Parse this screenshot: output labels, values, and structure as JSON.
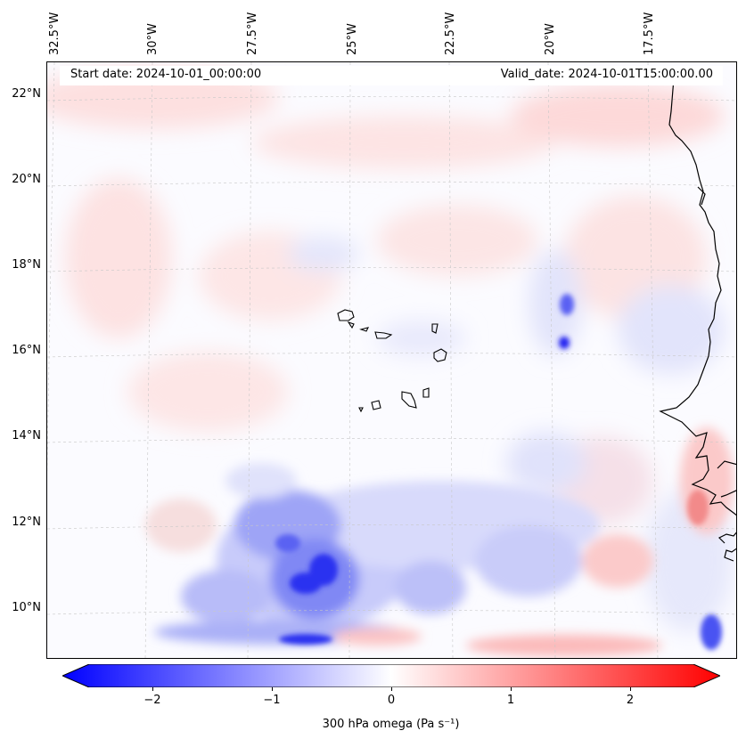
{
  "header": {
    "start_date": "Start date: 2024-10-01_00:00:00",
    "valid_date": "Valid_date: 2024-10-01T15:00:00.00"
  },
  "longitude_labels": [
    "32.5°W",
    "30°W",
    "27.5°W",
    "25°W",
    "22.5°W",
    "20°W",
    "17.5°W"
  ],
  "latitude_labels": [
    "22°N",
    "20°N",
    "18°N",
    "16°N",
    "14°N",
    "12°N",
    "10°N"
  ],
  "colorbar": {
    "label": "300 hPa omega (Pa s⁻¹)",
    "ticks": [
      "−2",
      "−1",
      "0",
      "1",
      "2"
    ],
    "colors": {
      "negative": "#0000ff",
      "neutral": "#ffffff",
      "positive": "#ff0000"
    },
    "range": [
      -2.6,
      2.6
    ]
  },
  "map": {
    "extent_lon": [
      "32.5°W",
      "15.5°W"
    ],
    "extent_lat": [
      "8.9°N",
      "22.8°N"
    ],
    "gridlines": true,
    "coastline_color": "#000000"
  }
}
